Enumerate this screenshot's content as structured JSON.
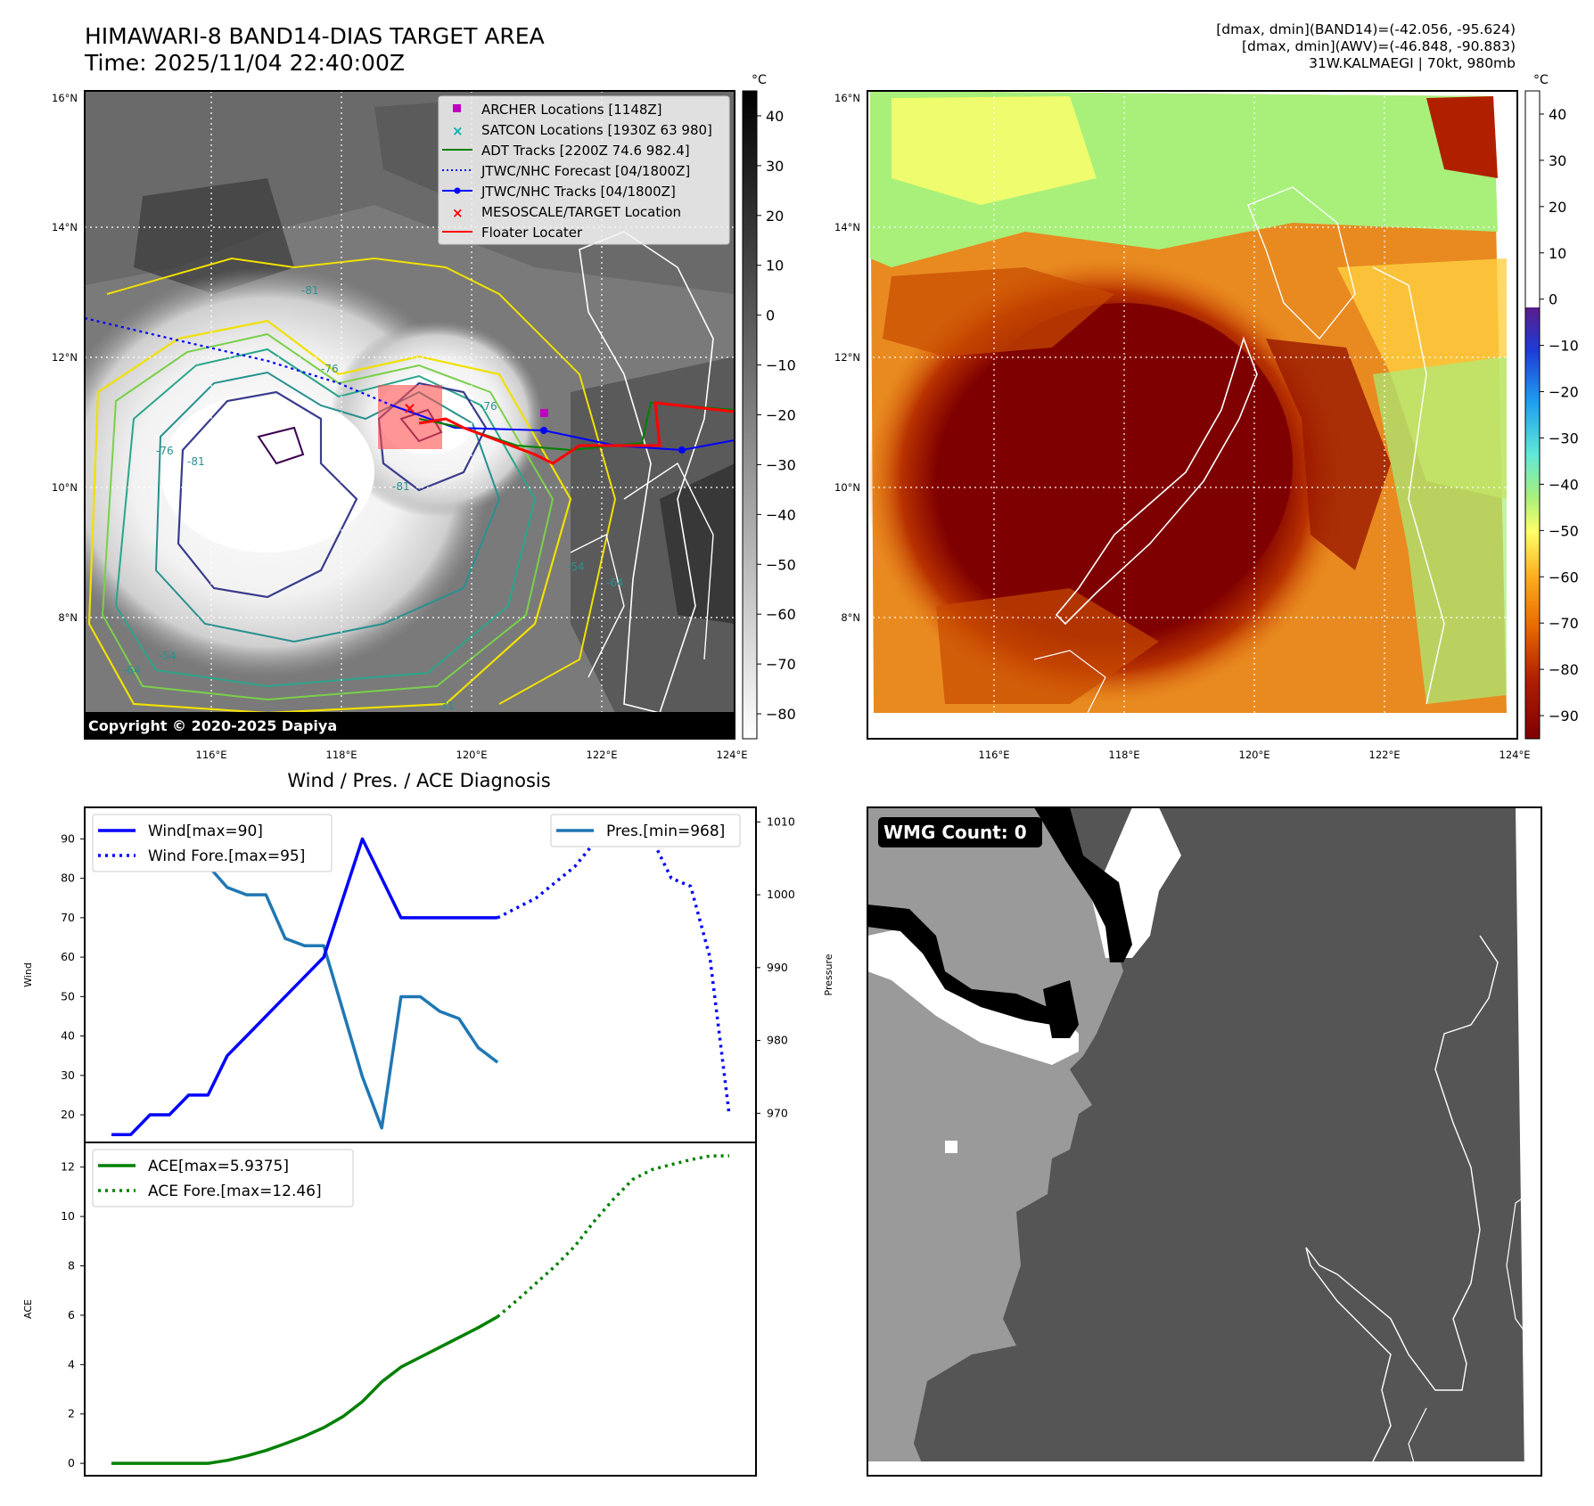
{
  "header": {
    "title": "HIMAWARI-8 BAND14-DIAS TARGET AREA",
    "time": "Time: 2025/11/04 22:40:00Z",
    "info_band14": "[dmax, dmin](BAND14)=(-42.056, -95.624)",
    "info_awv": "[dmax, dmin](AWV)=(-46.848, -90.883)",
    "info_storm": "31W.KALMAEGI | 70kt, 980mb"
  },
  "map": {
    "lat_labels": [
      "16°N",
      "14°N",
      "12°N",
      "10°N",
      "8°N"
    ],
    "lon_labels": [
      "116°E",
      "118°E",
      "120°E",
      "122°E",
      "124°E"
    ],
    "copyright": "Copyright © 2020-2025 Dapiya",
    "contour_labels": [
      "-81",
      "-81",
      "-81",
      "-76",
      "-76",
      "-76",
      "-64",
      "-64",
      "-54",
      "-54",
      "-31"
    ],
    "legend": [
      {
        "label": "ARCHER Locations [1148Z]",
        "color": "#c000c0",
        "marker": "square"
      },
      {
        "label": "SATCON Locations [1930Z 63 980]",
        "color": "#00b0b0",
        "marker": "x"
      },
      {
        "label": "ADT Tracks [2200Z 74.6 982.4]",
        "color": "#008000",
        "marker": "line"
      },
      {
        "label": "JTWC/NHC Forecast [04/1800Z]",
        "color": "#0000ff",
        "marker": "dotted"
      },
      {
        "label": "JTWC/NHC Tracks [04/1800Z]",
        "color": "#0000ff",
        "marker": "line-dot"
      },
      {
        "label": "MESOSCALE/TARGET Location",
        "color": "#ff0000",
        "marker": "x"
      },
      {
        "label": "Floater Locater",
        "color": "#ff0000",
        "marker": "line"
      }
    ]
  },
  "colorbars": {
    "unit": "°C",
    "band14_ticks": [
      "40",
      "30",
      "20",
      "10",
      "0",
      "−10",
      "−20",
      "−30",
      "−40",
      "−50",
      "−60",
      "−70",
      "−80"
    ],
    "awv_ticks": [
      "40",
      "30",
      "20",
      "10",
      "0",
      "−10",
      "−20",
      "−30",
      "−40",
      "−50",
      "−60",
      "−70",
      "−80",
      "−90"
    ]
  },
  "wmg": {
    "count_label": "WMG Count: 0"
  },
  "chart_data": [
    {
      "type": "line",
      "title": "Wind / Pres. / ACE Diagnosis",
      "ylabel": "Wind",
      "ylabel_right": "Pressure",
      "x": [
        0,
        1,
        2,
        3,
        4,
        5,
        6,
        7,
        8,
        9,
        10,
        11,
        12,
        13,
        14,
        15,
        16,
        17,
        18,
        19,
        20,
        21,
        22,
        23,
        24,
        25,
        26,
        27,
        28,
        29,
        30,
        31,
        32
      ],
      "ylim": [
        13,
        98
      ],
      "ylim_right": [
        966,
        1012
      ],
      "yticks": [
        "20",
        "30",
        "40",
        "50",
        "60",
        "70",
        "80",
        "90"
      ],
      "yticks_right": [
        "970",
        "980",
        "990",
        "1000",
        "1010"
      ],
      "series": [
        {
          "name": "Wind[max=90]",
          "color": "#0000ff",
          "style": "solid",
          "axis": "left",
          "x": [
            0,
            1,
            2,
            3,
            4,
            5,
            6,
            7,
            8,
            9,
            10,
            11,
            12,
            13,
            14,
            15,
            16,
            17,
            18,
            19,
            20
          ],
          "values": [
            15,
            15,
            20,
            20,
            25,
            25,
            35,
            40,
            45,
            50,
            55,
            60,
            75,
            90,
            80,
            70,
            70,
            70,
            70,
            70,
            70
          ]
        },
        {
          "name": "Wind Fore.[max=95]",
          "color": "#0000ff",
          "style": "dotted",
          "axis": "left",
          "x": [
            20,
            22,
            24,
            26,
            27,
            28,
            29,
            30,
            31,
            32
          ],
          "values": [
            70,
            75,
            83,
            95,
            95,
            90,
            80,
            78,
            60,
            20
          ]
        },
        {
          "name": "Pres.[min=968]",
          "color": "#1f77b4",
          "style": "solid",
          "axis": "right",
          "x": [
            0,
            1,
            2,
            3,
            4,
            5,
            6,
            7,
            8,
            9,
            10,
            11,
            12,
            13,
            14,
            15,
            16,
            17,
            18,
            19,
            20
          ],
          "values": [
            1010,
            1008,
            1008,
            1008,
            1007,
            1004,
            1001,
            1000,
            1000,
            994,
            993,
            993,
            984,
            975,
            968,
            986,
            986,
            984,
            983,
            979,
            977
          ]
        }
      ]
    },
    {
      "type": "line",
      "ylabel": "ACE",
      "x": [
        0,
        1,
        2,
        3,
        4,
        5,
        6,
        7,
        8,
        9,
        10,
        11,
        12,
        13,
        14,
        15,
        16,
        17,
        18,
        19,
        20,
        21,
        22,
        23,
        24,
        25,
        26,
        27,
        28,
        29,
        30,
        31,
        32
      ],
      "ylim": [
        -0.5,
        13
      ],
      "yticks": [
        "0",
        "2",
        "4",
        "6",
        "8",
        "10",
        "12"
      ],
      "series": [
        {
          "name": "ACE[max=5.9375]",
          "color": "#008000",
          "style": "solid",
          "x": [
            0,
            1,
            2,
            3,
            4,
            5,
            6,
            7,
            8,
            9,
            10,
            11,
            12,
            13,
            14,
            15,
            16,
            17,
            18,
            19,
            20
          ],
          "values": [
            0,
            0,
            0,
            0,
            0,
            0,
            0.12,
            0.3,
            0.52,
            0.8,
            1.1,
            1.45,
            1.9,
            2.5,
            3.3,
            3.9,
            4.3,
            4.7,
            5.1,
            5.5,
            5.94
          ]
        },
        {
          "name": "ACE Fore.[max=12.46]",
          "color": "#008000",
          "style": "dotted",
          "x": [
            20,
            21,
            22,
            23,
            24,
            25,
            26,
            27,
            28,
            29,
            30,
            31,
            32
          ],
          "values": [
            5.94,
            6.6,
            7.3,
            8.0,
            8.8,
            9.8,
            10.7,
            11.5,
            11.9,
            12.1,
            12.3,
            12.45,
            12.46
          ]
        }
      ]
    }
  ]
}
